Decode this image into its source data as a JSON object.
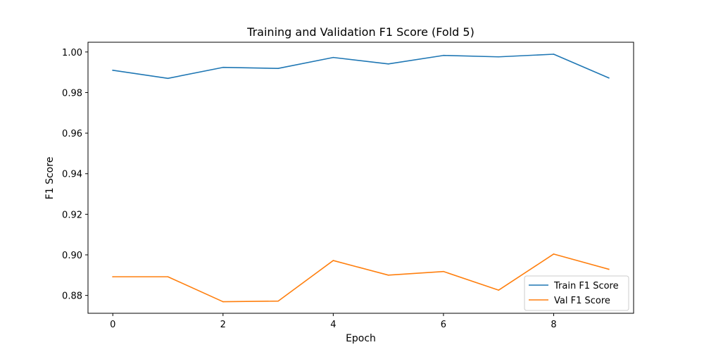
{
  "chart_data": {
    "type": "line",
    "title": "Training and Validation F1 Score (Fold 5)",
    "xlabel": "Epoch",
    "ylabel": "F1 Score",
    "x": [
      0,
      1,
      2,
      3,
      4,
      5,
      6,
      7,
      8,
      9
    ],
    "xlim": [
      -0.45,
      9.45
    ],
    "ylim": [
      0.8712,
      1.0048
    ],
    "xticks": [
      0,
      2,
      4,
      6,
      8
    ],
    "yticks": [
      0.88,
      0.9,
      0.92,
      0.94,
      0.96,
      0.98,
      1.0
    ],
    "grid": false,
    "legend_position": "lower-right",
    "series": [
      {
        "name": "Train F1 Score",
        "color": "#1f77b4",
        "values": [
          0.991,
          0.987,
          0.9924,
          0.9919,
          0.9973,
          0.9941,
          0.9983,
          0.9976,
          0.9989,
          0.9872
        ]
      },
      {
        "name": "Val F1 Score",
        "color": "#ff7f0e",
        "values": [
          0.8892,
          0.8892,
          0.8769,
          0.8772,
          0.8972,
          0.89,
          0.8918,
          0.8826,
          0.9004,
          0.8929
        ]
      }
    ]
  }
}
